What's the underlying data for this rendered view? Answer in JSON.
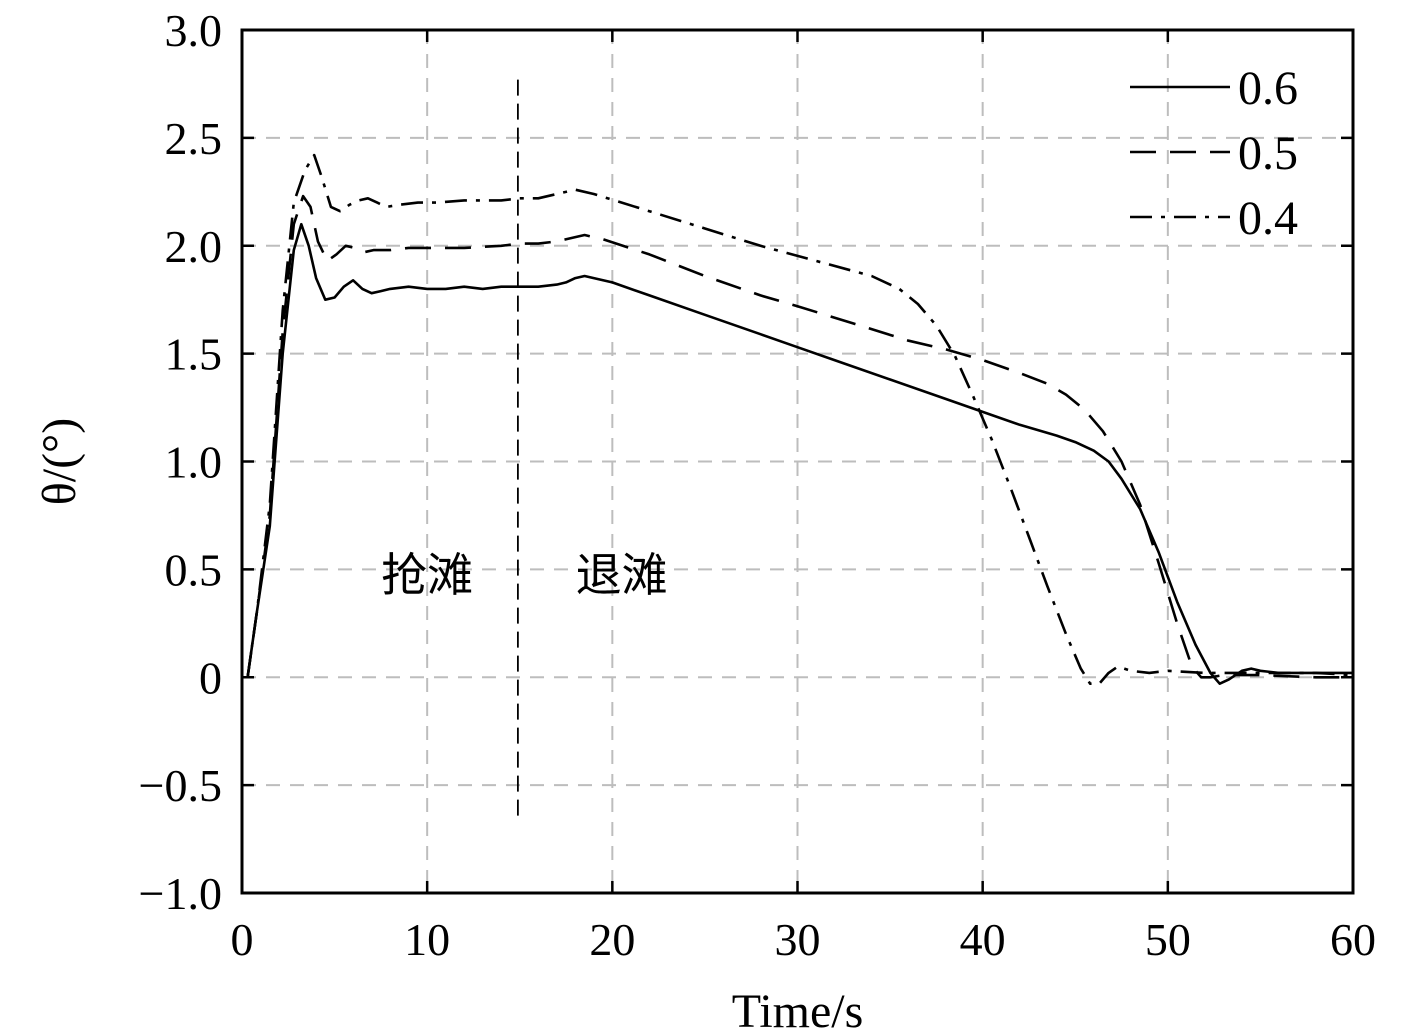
{
  "chart_data": {
    "type": "line",
    "title": "",
    "xlabel": "Time/s",
    "ylabel": "θ/(°)",
    "xlim": [
      0,
      60
    ],
    "ylim": [
      -1.0,
      3.0
    ],
    "xticks": [
      0,
      10,
      20,
      30,
      40,
      50,
      60
    ],
    "xtick_labels": [
      "0",
      "10",
      "20",
      "30",
      "40",
      "50",
      "60"
    ],
    "yticks": [
      -1.0,
      -0.5,
      0,
      0.5,
      1.0,
      1.5,
      2.0,
      2.5,
      3.0
    ],
    "ytick_labels": [
      "−1.0",
      "−0.5",
      "0",
      "0.5",
      "1.0",
      "1.5",
      "2.0",
      "2.5",
      "3.0"
    ],
    "grid": true,
    "legend_position": "top-right",
    "series": [
      {
        "name": "0.6",
        "line_style": "solid",
        "x": [
          0.3,
          0.8,
          1.5,
          2.2,
          2.8,
          3.2,
          3.6,
          4.0,
          4.5,
          5.0,
          5.5,
          6.0,
          6.5,
          7.0,
          7.5,
          8.0,
          9.0,
          10.0,
          11.0,
          12.0,
          13.0,
          14.0,
          15.0,
          16.0,
          17.0,
          17.5,
          18.0,
          18.5,
          19.0,
          20.0,
          22.0,
          25.0,
          28.0,
          30.0,
          32.0,
          35.0,
          38.0,
          40.0,
          42.0,
          44.0,
          45.0,
          46.0,
          46.8,
          47.5,
          48.5,
          49.5,
          50.5,
          51.5,
          52.3,
          52.8,
          53.3,
          54.0,
          54.5,
          55.0,
          56.0,
          58.0,
          60.0
        ],
        "y": [
          0.0,
          0.3,
          0.7,
          1.5,
          1.98,
          2.1,
          2.0,
          1.85,
          1.75,
          1.76,
          1.81,
          1.84,
          1.8,
          1.78,
          1.79,
          1.8,
          1.81,
          1.8,
          1.8,
          1.81,
          1.8,
          1.81,
          1.81,
          1.81,
          1.82,
          1.83,
          1.85,
          1.86,
          1.85,
          1.83,
          1.77,
          1.68,
          1.59,
          1.53,
          1.47,
          1.38,
          1.29,
          1.23,
          1.17,
          1.12,
          1.09,
          1.05,
          1.0,
          0.92,
          0.78,
          0.58,
          0.35,
          0.15,
          0.02,
          -0.03,
          -0.01,
          0.03,
          0.04,
          0.03,
          0.02,
          0.02,
          0.02
        ]
      },
      {
        "name": "0.5",
        "line_style": "dashed",
        "x": [
          0.3,
          0.8,
          1.5,
          2.2,
          2.8,
          3.3,
          3.7,
          4.1,
          4.6,
          5.1,
          5.6,
          6.1,
          6.6,
          7.1,
          7.6,
          8.0,
          9.0,
          10.0,
          12.0,
          14.0,
          15.0,
          16.0,
          17.0,
          18.0,
          18.5,
          19.5,
          22.0,
          25.0,
          28.0,
          30.0,
          33.0,
          36.0,
          38.0,
          40.0,
          42.0,
          43.5,
          44.5,
          45.5,
          46.5,
          47.5,
          48.5,
          49.5,
          50.5,
          51.3,
          51.8,
          52.3,
          53.0,
          55.0,
          58.0,
          60.0
        ],
        "y": [
          0.0,
          0.3,
          0.75,
          1.6,
          2.1,
          2.23,
          2.18,
          2.02,
          1.93,
          1.96,
          2.0,
          1.99,
          1.97,
          1.98,
          1.98,
          1.98,
          1.99,
          1.99,
          1.99,
          2.0,
          2.01,
          2.01,
          2.02,
          2.04,
          2.05,
          2.03,
          1.96,
          1.86,
          1.77,
          1.72,
          1.64,
          1.56,
          1.52,
          1.47,
          1.41,
          1.36,
          1.31,
          1.24,
          1.14,
          1.0,
          0.8,
          0.53,
          0.25,
          0.05,
          0.0,
          0.0,
          0.01,
          0.01,
          0.0,
          0.0
        ]
      },
      {
        "name": "0.4",
        "line_style": "dash-dot",
        "x": [
          0.3,
          0.8,
          1.5,
          2.2,
          2.8,
          3.4,
          3.9,
          4.3,
          4.8,
          5.3,
          5.8,
          6.3,
          6.8,
          7.3,
          7.8,
          8.5,
          9.5,
          10.5,
          12.0,
          14.0,
          15.0,
          16.0,
          17.0,
          18.0,
          19.0,
          22.0,
          25.0,
          28.0,
          31.0,
          34.0,
          35.5,
          36.5,
          37.5,
          38.5,
          39.5,
          40.5,
          41.5,
          42.5,
          43.5,
          44.5,
          45.3,
          45.8,
          46.3,
          46.8,
          47.3,
          48.0,
          49.0,
          50.0,
          52.0,
          55.0,
          58.0,
          60.0
        ],
        "y": [
          0.0,
          0.3,
          0.8,
          1.7,
          2.2,
          2.35,
          2.42,
          2.32,
          2.18,
          2.16,
          2.19,
          2.21,
          2.22,
          2.2,
          2.18,
          2.19,
          2.2,
          2.2,
          2.21,
          2.21,
          2.22,
          2.22,
          2.24,
          2.26,
          2.24,
          2.16,
          2.08,
          2.0,
          1.93,
          1.86,
          1.8,
          1.73,
          1.63,
          1.49,
          1.3,
          1.1,
          0.88,
          0.65,
          0.42,
          0.2,
          0.04,
          -0.03,
          -0.03,
          0.02,
          0.05,
          0.03,
          0.02,
          0.03,
          0.02,
          0.02,
          0.02,
          0.01
        ]
      }
    ],
    "annotations": [
      {
        "text": "抢滩",
        "x": 10.0,
        "y": 0.4
      },
      {
        "text": "退滩",
        "x": 20.5,
        "y": 0.4
      }
    ],
    "vertical_marker": {
      "x": 14.9,
      "y_from": -0.67,
      "y_to": 2.77,
      "line_style": "dashed"
    }
  }
}
